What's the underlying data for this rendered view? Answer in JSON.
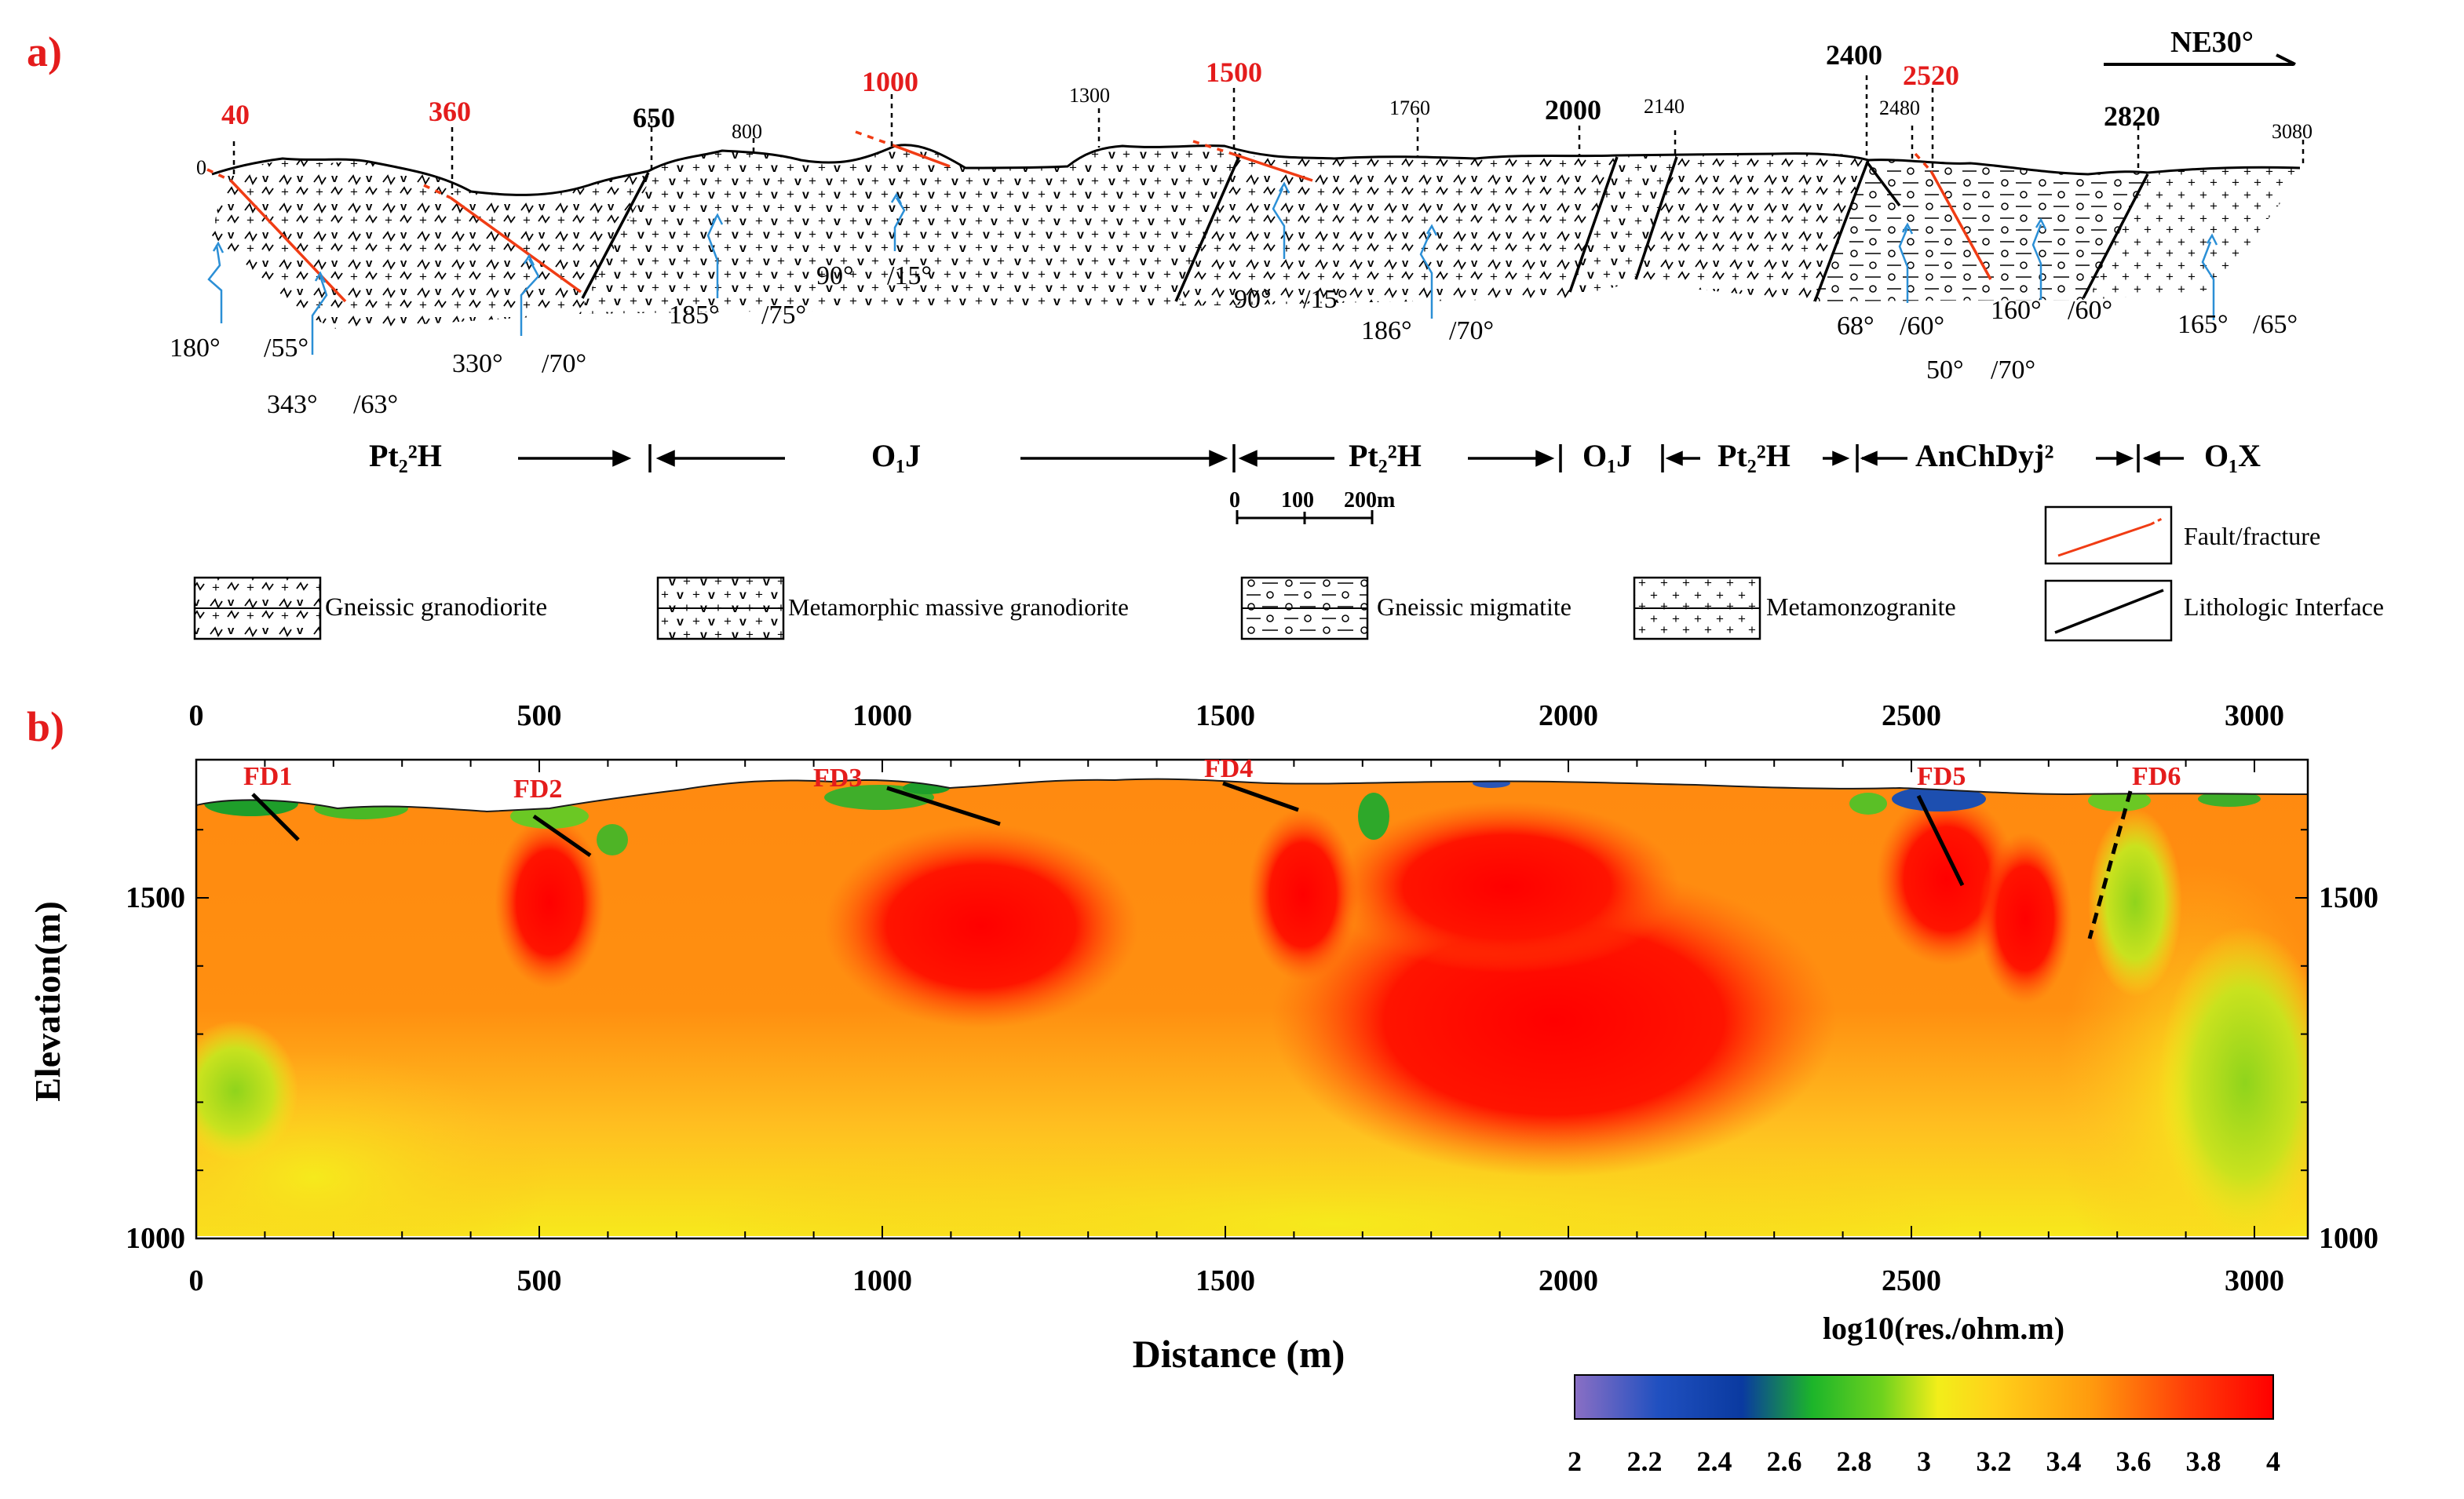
{
  "panel_a": {
    "label": "a)",
    "direction": "NE30°",
    "stations_red": [
      "40",
      "360",
      "1000",
      "1500",
      "2520"
    ],
    "stations_bold": [
      "650",
      "2000",
      "2400",
      "2820"
    ],
    "stations_small": [
      "0",
      "800",
      "1300",
      "1760",
      "2140",
      "2480",
      "3080"
    ],
    "orientations": [
      "180°",
      "/55°",
      "343°",
      "/63°",
      "330°",
      "/70°",
      "185°",
      "/75°",
      "90°",
      "/15°",
      "90°",
      "/15°",
      "186°",
      "/70°",
      "68°",
      "/60°",
      "50°",
      "/70°",
      "160°",
      "/60°",
      "165°",
      "/65°"
    ],
    "units": [
      "Pt₂²H",
      "O₁J",
      "Pt₂²H",
      "O₁J",
      "Pt₂²H",
      "AnChDyj²",
      "O₁X"
    ],
    "scale_bar": [
      "0",
      "100",
      "200m"
    ],
    "legend": {
      "gneissic_granodiorite": "Gneissic granodiorite",
      "metamorphic_massive_granodiorite": "Metamorphic massive granodiorite",
      "gneissic_migmatite": "Gneissic migmatite",
      "metamonzogranite": "Metamonzogranite",
      "fault": "Fault/fracture",
      "interface": "Lithologic Interface"
    }
  },
  "panel_b": {
    "label": "b)",
    "x_ticks": [
      "0",
      "500",
      "1000",
      "1500",
      "2000",
      "2500",
      "3000"
    ],
    "y_ticks": [
      "1500",
      "1000"
    ],
    "ylabel": "Elevation(m)",
    "xlabel": "Distance (m)",
    "faults": [
      "FD1",
      "FD2",
      "FD3",
      "FD4",
      "FD5",
      "FD6"
    ],
    "colorbar_title": "log10(res./ohm.m)",
    "colorbar_ticks": [
      "2",
      "2.2",
      "2.4",
      "2.6",
      "2.8",
      "3",
      "3.2",
      "3.4",
      "3.6",
      "3.8",
      "4"
    ]
  },
  "colors": {
    "red_label": "#e41c1c",
    "fault": "#f03c14",
    "water": "#2b8fd6"
  }
}
